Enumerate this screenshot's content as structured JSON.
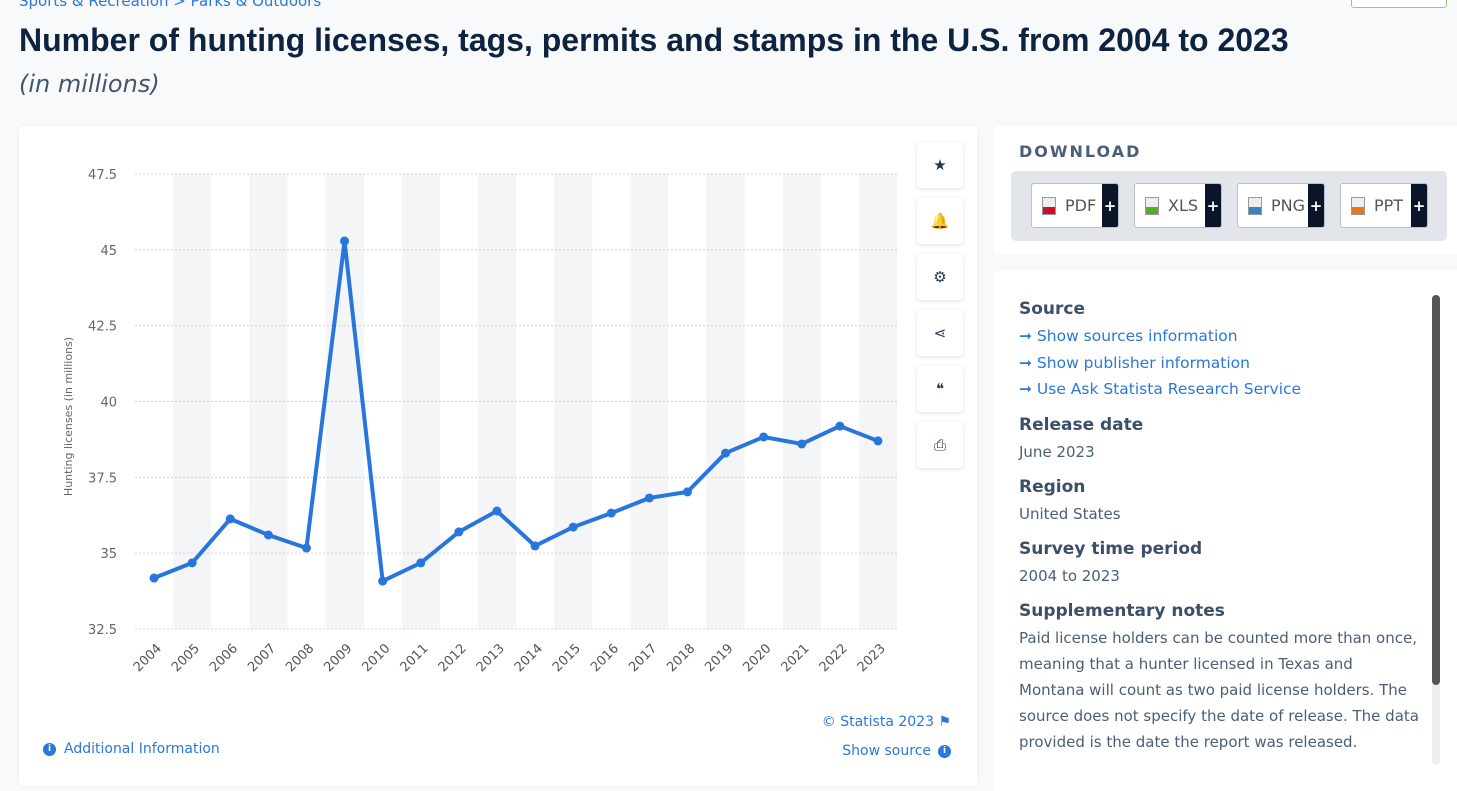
{
  "breadcrumb": "Sports & Recreation > Parks & Outdoors",
  "title": "Number of hunting licenses, tags, permits and stamps in the U.S. from 2004 to 2023",
  "subtitle": "(in millions)",
  "chart_data": {
    "type": "line",
    "title": "Number of hunting licenses, tags, permits and stamps in the U.S. from 2004 to 2023",
    "xlabel": "",
    "ylabel": "Hunting licenses (in millions)",
    "ylim": [
      32.5,
      47.5
    ],
    "yticks": [
      32.5,
      35,
      37.5,
      40,
      42.5,
      45,
      47.5
    ],
    "ytick_labels": [
      "32.5",
      "35",
      "37.5",
      "40",
      "42.5",
      "45",
      "47.5"
    ],
    "grid": true,
    "categories": [
      "2004",
      "2005",
      "2006",
      "2007",
      "2008",
      "2009",
      "2010",
      "2011",
      "2012",
      "2013",
      "2014",
      "2015",
      "2016",
      "2017",
      "2018",
      "2019",
      "2020",
      "2021",
      "2022",
      "2023"
    ],
    "series": [
      {
        "name": "Hunting licenses",
        "color": "#2876dd",
        "values": [
          34.18,
          34.68,
          36.13,
          35.6,
          35.17,
          45.29,
          34.08,
          34.68,
          35.7,
          36.39,
          35.24,
          35.86,
          36.32,
          36.82,
          37.02,
          38.3,
          38.83,
          38.6,
          39.19,
          38.7
        ]
      }
    ]
  },
  "tools": [
    {
      "icon": "star-icon",
      "glyph": "★"
    },
    {
      "icon": "bell-icon",
      "glyph": "🔔"
    },
    {
      "icon": "gear-icon",
      "glyph": "⚙"
    },
    {
      "icon": "share-icon",
      "glyph": "⋖"
    },
    {
      "icon": "quote-icon",
      "glyph": "❝"
    },
    {
      "icon": "print-icon",
      "glyph": "⎙"
    }
  ],
  "credit": "© Statista 2023",
  "additional_info": "Additional Information",
  "show_source": "Show source",
  "download": {
    "heading": "DOWNLOAD",
    "formats": [
      {
        "label": "PDF",
        "color": "#c8102e"
      },
      {
        "label": "XLS",
        "color": "#5aa832"
      },
      {
        "label": "PNG",
        "color": "#3b82c4"
      },
      {
        "label": "PPT",
        "color": "#e87722"
      }
    ],
    "plus": "+"
  },
  "meta": {
    "source_heading": "Source",
    "links": [
      "Show sources information",
      "Show publisher information",
      "Use Ask Statista Research Service"
    ],
    "release_heading": "Release date",
    "release": "June 2023",
    "region_heading": "Region",
    "region": "United States",
    "period_heading": "Survey time period",
    "period": "2004 to 2023",
    "notes_heading": "Supplementary notes",
    "notes": "Paid license holders can be counted more than once, meaning that a hunter licensed in Texas and Montana will count as two paid license holders. The source does not specify the date of release. The data provided is the date the report was released."
  }
}
